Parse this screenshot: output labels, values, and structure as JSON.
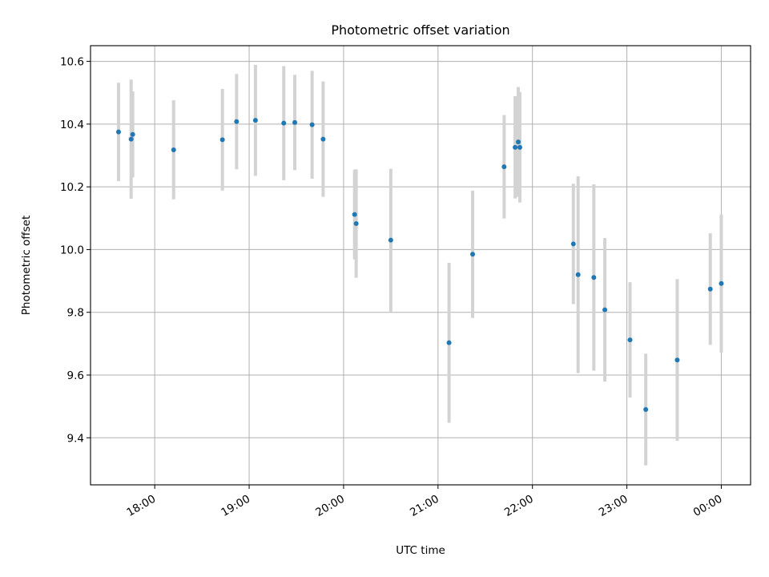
{
  "chart_data": {
    "type": "scatter",
    "title": "Photometric offset variation",
    "xlabel": "UTC time",
    "ylabel": "Photometric offset",
    "x_ticks": [
      "18:00",
      "19:00",
      "20:00",
      "21:00",
      "22:00",
      "23:00",
      "00:00"
    ],
    "x_tick_hours": [
      18,
      19,
      20,
      21,
      22,
      23,
      24
    ],
    "xlim": [
      17.32,
      24.31
    ],
    "ylim": [
      9.25,
      10.65
    ],
    "y_ticks": [
      9.4,
      9.6,
      9.8,
      10.0,
      10.2,
      10.4,
      10.6
    ],
    "y_tick_labels": [
      "9.4",
      "9.6",
      "9.8",
      "10.0",
      "10.2",
      "10.4",
      "10.6"
    ],
    "grid": true,
    "marker_color": "#1f77b4",
    "errorbar_color": "#d3d3d3",
    "points": [
      {
        "x": "17:37",
        "y": 10.375,
        "err": 0.157
      },
      {
        "x": "17:45",
        "y": 10.352,
        "err": 0.19
      },
      {
        "x": "17:46",
        "y": 10.367,
        "err": 0.137
      },
      {
        "x": "18:12",
        "y": 10.318,
        "err": 0.158
      },
      {
        "x": "18:43",
        "y": 10.35,
        "err": 0.162
      },
      {
        "x": "18:52",
        "y": 10.408,
        "err": 0.152
      },
      {
        "x": "19:04",
        "y": 10.412,
        "err": 0.177
      },
      {
        "x": "19:22",
        "y": 10.403,
        "err": 0.182
      },
      {
        "x": "19:29",
        "y": 10.405,
        "err": 0.152
      },
      {
        "x": "19:40",
        "y": 10.398,
        "err": 0.172
      },
      {
        "x": "19:47",
        "y": 10.352,
        "err": 0.184
      },
      {
        "x": "20:07",
        "y": 10.112,
        "err": 0.143
      },
      {
        "x": "20:08",
        "y": 10.083,
        "err": 0.173
      },
      {
        "x": "20:30",
        "y": 10.03,
        "err": 0.228
      },
      {
        "x": "21:07",
        "y": 9.703,
        "err": 0.255
      },
      {
        "x": "21:22",
        "y": 9.985,
        "err": 0.203
      },
      {
        "x": "21:42",
        "y": 10.264,
        "err": 0.165
      },
      {
        "x": "21:49",
        "y": 10.326,
        "err": 0.163
      },
      {
        "x": "21:51",
        "y": 10.343,
        "err": 0.175
      },
      {
        "x": "21:52",
        "y": 10.326,
        "err": 0.176
      },
      {
        "x": "22:26",
        "y": 10.018,
        "err": 0.192
      },
      {
        "x": "22:29",
        "y": 9.92,
        "err": 0.314
      },
      {
        "x": "22:39",
        "y": 9.911,
        "err": 0.297
      },
      {
        "x": "22:46",
        "y": 9.808,
        "err": 0.229
      },
      {
        "x": "23:02",
        "y": 9.712,
        "err": 0.184
      },
      {
        "x": "23:12",
        "y": 9.49,
        "err": 0.178
      },
      {
        "x": "23:32",
        "y": 9.648,
        "err": 0.258
      },
      {
        "x": "23:53",
        "y": 9.874,
        "err": 0.178
      },
      {
        "x": "24:00",
        "y": 9.892,
        "err": 0.22
      }
    ]
  }
}
